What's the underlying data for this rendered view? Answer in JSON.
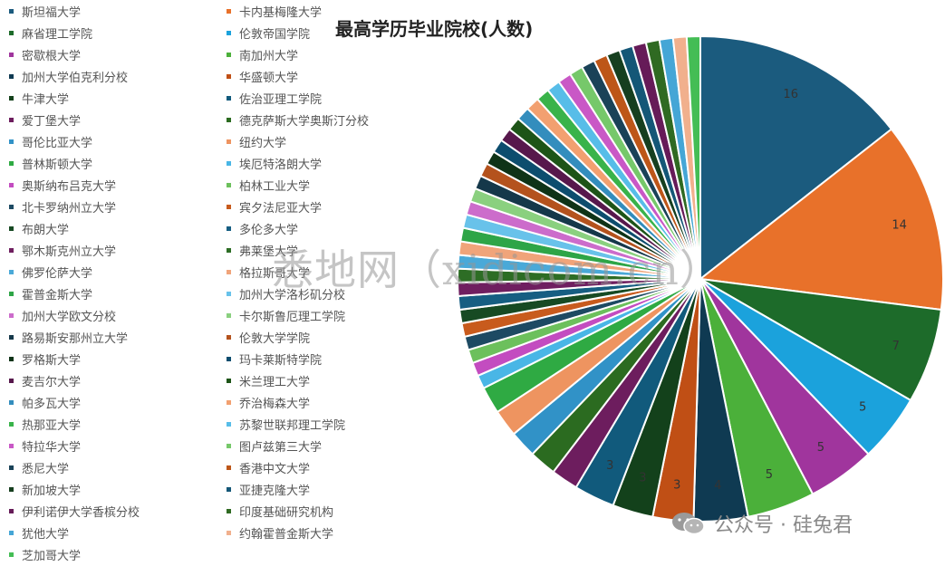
{
  "chart_data": {
    "type": "pie",
    "title": "最高学历毕业院校(人数)",
    "slices": [
      {
        "label": "斯坦福大学",
        "value": 16,
        "color": "#1b5b7e"
      },
      {
        "label": "卡内基梅隆大学",
        "value": 14,
        "color": "#e8712a"
      },
      {
        "label": "麻省理工学院",
        "value": 7,
        "color": "#1d6b2a"
      },
      {
        "label": "伦敦帝国学院",
        "value": 5,
        "color": "#1ba2dc"
      },
      {
        "label": "密歇根大学",
        "value": 5,
        "color": "#a0359d"
      },
      {
        "label": "南加州大学",
        "value": 5,
        "color": "#4bb03a"
      },
      {
        "label": "加州大学伯克利分校",
        "value": 4,
        "color": "#0f3a52"
      },
      {
        "label": "华盛顿大学",
        "value": 3,
        "color": "#c04f15"
      },
      {
        "label": "牛津大学",
        "value": 3,
        "color": "#13411b"
      },
      {
        "label": "佐治亚理工学院",
        "value": 3,
        "color": "#115a7c"
      },
      {
        "label": "爱丁堡大学",
        "value": 2,
        "color": "#6d1d5e"
      },
      {
        "label": "德克萨斯大学奥斯汀分校",
        "value": 2,
        "color": "#2b6b20"
      },
      {
        "label": "哥伦比亚大学",
        "value": 2,
        "color": "#3192c7"
      },
      {
        "label": "纽约大学",
        "value": 2,
        "color": "#ee9460"
      },
      {
        "label": "普林斯顿大学",
        "value": 2,
        "color": "#2faa43"
      },
      {
        "label": "埃厄特洛朗大学",
        "value": 1,
        "color": "#49b6e6"
      },
      {
        "label": "奥斯纳布吕克大学",
        "value": 1,
        "color": "#c34cc0"
      },
      {
        "label": "柏林工业大学",
        "value": 1,
        "color": "#6cc05c"
      },
      {
        "label": "北卡罗纳州立大学",
        "value": 1,
        "color": "#1d4a63"
      },
      {
        "label": "宾夕法尼亚大学",
        "value": 1,
        "color": "#c85b1d"
      },
      {
        "label": "布朗大学",
        "value": 1,
        "color": "#174a23"
      },
      {
        "label": "多伦多大学",
        "value": 1,
        "color": "#165e82"
      },
      {
        "label": "鄂木斯克州立大学",
        "value": 1,
        "color": "#6f1f60"
      },
      {
        "label": "弗莱堡大学",
        "value": 1,
        "color": "#2d6d25"
      },
      {
        "label": "佛罗伦萨大学",
        "value": 1,
        "color": "#4aa9d8"
      },
      {
        "label": "格拉斯哥大学",
        "value": 1,
        "color": "#f0a47a"
      },
      {
        "label": "霍普金斯大学",
        "value": 1,
        "color": "#2ea547"
      },
      {
        "label": "加州大学洛杉矶分校",
        "value": 1,
        "color": "#68c2ea"
      },
      {
        "label": "加州大学欧文分校",
        "value": 1,
        "color": "#cc6ccb"
      },
      {
        "label": "卡尔斯鲁厄理工学院",
        "value": 1,
        "color": "#8ad07f"
      },
      {
        "label": "路易斯安那州立大学",
        "value": 1,
        "color": "#15384a"
      },
      {
        "label": "伦敦大学学院",
        "value": 1,
        "color": "#b4521d"
      },
      {
        "label": "罗格斯大学",
        "value": 1,
        "color": "#0f3317"
      },
      {
        "label": "玛卡莱斯特学院",
        "value": 1,
        "color": "#0d4d6e"
      },
      {
        "label": "麦吉尔大学",
        "value": 1,
        "color": "#57184c"
      },
      {
        "label": "米兰理工大学",
        "value": 1,
        "color": "#1d5417"
      },
      {
        "label": "帕多瓦大学",
        "value": 1,
        "color": "#338dbd"
      },
      {
        "label": "乔治梅森大学",
        "value": 1,
        "color": "#f2a070"
      },
      {
        "label": "热那亚大学",
        "value": 1,
        "color": "#39b34a"
      },
      {
        "label": "苏黎世联邦理工学院",
        "value": 1,
        "color": "#57bde8"
      },
      {
        "label": "特拉华大学",
        "value": 1,
        "color": "#c958c6"
      },
      {
        "label": "图卢兹第三大学",
        "value": 1,
        "color": "#76c86a"
      },
      {
        "label": "悉尼大学",
        "value": 1,
        "color": "#1a4258"
      },
      {
        "label": "香港中文大学",
        "value": 1,
        "color": "#bd5618"
      },
      {
        "label": "新加坡大学",
        "value": 1,
        "color": "#163f1f"
      },
      {
        "label": "亚捷克隆大学",
        "value": 1,
        "color": "#145777"
      },
      {
        "label": "伊利诺伊大学香槟分校",
        "value": 1,
        "color": "#661b58"
      },
      {
        "label": "印度基础研究机构",
        "value": 1,
        "color": "#2f6a22"
      },
      {
        "label": "犹他大学",
        "value": 1,
        "color": "#45a6d6"
      },
      {
        "label": "约翰霍普金斯大学",
        "value": 1,
        "color": "#f1b08d"
      },
      {
        "label": "芝加哥大学",
        "value": 1,
        "color": "#44bd55"
      }
    ],
    "data_labels_shown": [
      16,
      14,
      7,
      5,
      5,
      5,
      4,
      3,
      3,
      3
    ],
    "legend_placement": "left"
  },
  "watermark": {
    "text": "悉地网（xidicom.cn）"
  },
  "footer": {
    "brand": "公众号 · 硅兔君",
    "icon": "wechat-icon"
  }
}
